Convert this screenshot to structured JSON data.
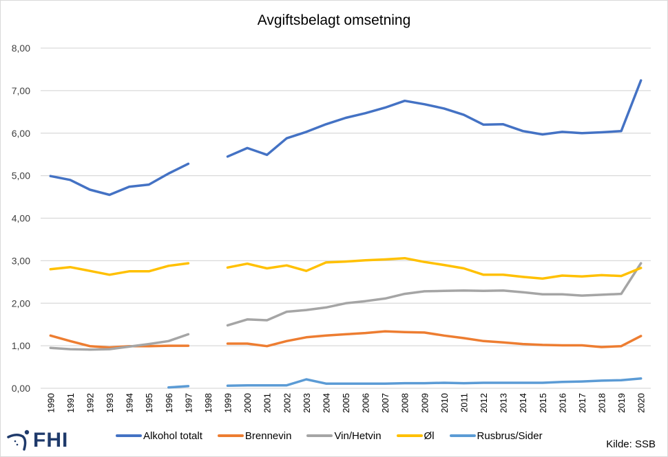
{
  "logo": {
    "text": "FHI"
  },
  "source": "Kilde: SSB",
  "chart_data": {
    "type": "line",
    "title": "Avgiftsbelagt omsetning",
    "xlabel": "",
    "ylabel": "",
    "ylim": [
      0,
      8
    ],
    "yticks": [
      "0,00",
      "1,00",
      "2,00",
      "3,00",
      "4,00",
      "5,00",
      "6,00",
      "7,00",
      "8,00"
    ],
    "grid": true,
    "legend_position": "bottom",
    "categories": [
      "1990",
      "1991",
      "1992",
      "1993",
      "1994",
      "1995",
      "1996",
      "1997",
      "1998",
      "1999",
      "2000",
      "2001",
      "2002",
      "2003",
      "2004",
      "2005",
      "2006",
      "2007",
      "2008",
      "2009",
      "2010",
      "2011",
      "2012",
      "2013",
      "2014",
      "2015",
      "2016",
      "2017",
      "2018",
      "2019",
      "2020"
    ],
    "series": [
      {
        "name": "Alkohol totalt",
        "color": "#4472c4",
        "values": [
          4.99,
          4.9,
          4.67,
          4.55,
          4.74,
          4.79,
          5.05,
          5.28,
          null,
          5.45,
          5.65,
          5.49,
          5.88,
          6.03,
          6.21,
          6.36,
          6.47,
          6.6,
          6.76,
          6.68,
          6.58,
          6.43,
          6.2,
          6.21,
          6.05,
          5.97,
          6.03,
          6.0,
          6.02,
          6.05,
          7.24
        ]
      },
      {
        "name": "Brennevin",
        "color": "#ed7d31",
        "values": [
          1.24,
          1.11,
          0.99,
          0.96,
          0.99,
          0.99,
          1.0,
          1.0,
          null,
          1.05,
          1.05,
          0.99,
          1.11,
          1.2,
          1.24,
          1.27,
          1.3,
          1.34,
          1.32,
          1.31,
          1.24,
          1.18,
          1.11,
          1.08,
          1.04,
          1.02,
          1.01,
          1.01,
          0.97,
          0.99,
          1.23
        ]
      },
      {
        "name": "Vin/Hetvin",
        "color": "#a5a5a5",
        "values": [
          0.95,
          0.92,
          0.91,
          0.92,
          0.98,
          1.04,
          1.11,
          1.27,
          null,
          1.48,
          1.62,
          1.6,
          1.8,
          1.84,
          1.9,
          2.0,
          2.05,
          2.11,
          2.22,
          2.28,
          2.29,
          2.3,
          2.29,
          2.3,
          2.26,
          2.21,
          2.21,
          2.18,
          2.2,
          2.22,
          2.94
        ]
      },
      {
        "name": "Øl",
        "color": "#ffc000",
        "values": [
          2.8,
          2.85,
          2.76,
          2.67,
          2.75,
          2.75,
          2.88,
          2.94,
          null,
          2.84,
          2.93,
          2.82,
          2.89,
          2.76,
          2.96,
          2.98,
          3.01,
          3.03,
          3.06,
          2.97,
          2.9,
          2.82,
          2.67,
          2.67,
          2.62,
          2.58,
          2.65,
          2.63,
          2.66,
          2.64,
          2.83
        ]
      },
      {
        "name": "Rusbrus/Sider",
        "color": "#5b9bd5",
        "values": [
          null,
          null,
          null,
          null,
          null,
          null,
          0.02,
          0.05,
          null,
          0.06,
          0.07,
          0.07,
          0.07,
          0.21,
          0.11,
          0.11,
          0.11,
          0.11,
          0.12,
          0.12,
          0.13,
          0.12,
          0.13,
          0.13,
          0.13,
          0.13,
          0.15,
          0.16,
          0.18,
          0.19,
          0.23
        ]
      }
    ]
  }
}
